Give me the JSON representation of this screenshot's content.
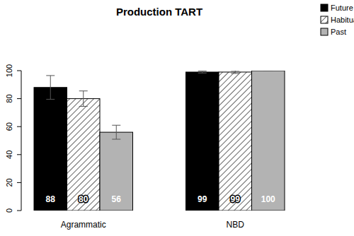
{
  "chart_data": {
    "type": "bar",
    "title": "Production TART",
    "categories": [
      "Agrammatic",
      "NBD"
    ],
    "series": [
      {
        "name": "Future",
        "color": "#000000",
        "values": [
          88,
          99
        ],
        "errors": [
          8.5,
          0.7
        ]
      },
      {
        "name": "Habitual",
        "color": "#ffffff",
        "values": [
          80,
          99
        ],
        "errors": [
          5.5,
          1
        ]
      },
      {
        "name": "Past",
        "color": "#b3b3b3",
        "values": [
          56,
          100
        ],
        "errors": [
          5,
          0
        ]
      }
    ],
    "ylim": [
      0,
      100
    ],
    "yticks": [
      0,
      20,
      40,
      60,
      80,
      100
    ],
    "grid": false,
    "legend": "top-right",
    "data_labels": true
  }
}
